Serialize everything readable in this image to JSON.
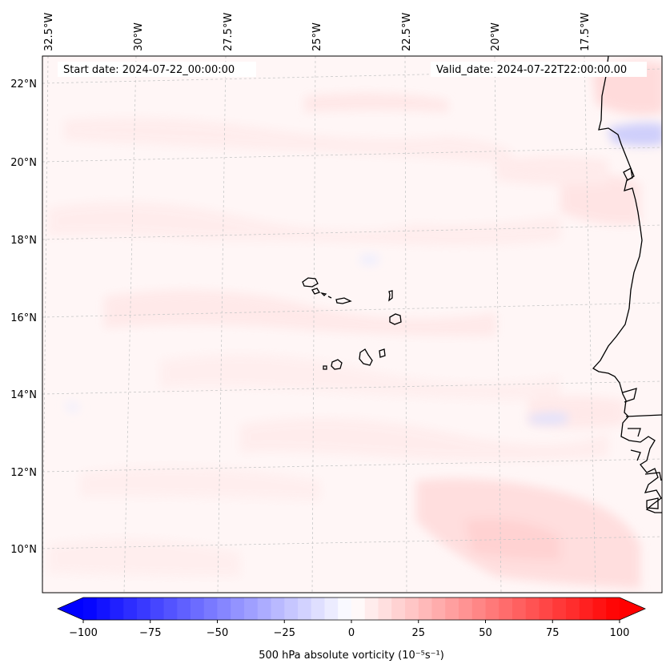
{
  "header": {
    "start_date": "Start date: 2024-07-22_00:00:00",
    "valid_date": "Valid_date: 2024-07-22T22:00:00.00"
  },
  "longitude_labels": [
    "32.5°W",
    "30°W",
    "27.5°W",
    "25°W",
    "22.5°W",
    "20°W",
    "17.5°W"
  ],
  "latitude_labels": [
    "22°N",
    "20°N",
    "18°N",
    "16°N",
    "14°N",
    "12°N",
    "10°N"
  ],
  "colorbar": {
    "ticks": [
      "−100",
      "−75",
      "−50",
      "−25",
      "0",
      "25",
      "50",
      "75",
      "100"
    ],
    "min": -100,
    "max": 100,
    "label": "500 hPa absolute vorticity (10⁻⁵s⁻¹)",
    "low_color": "#0000ff",
    "mid_color": "#ffffff",
    "high_color": "#ff0000"
  },
  "colors": {
    "field_base": "#fff6f6",
    "light_red": "#ffe3e3",
    "pale_red": "#ffecec",
    "light_blue": "#eaeafd",
    "coastline": "#000000",
    "gridline": "#c8c8c8"
  }
}
